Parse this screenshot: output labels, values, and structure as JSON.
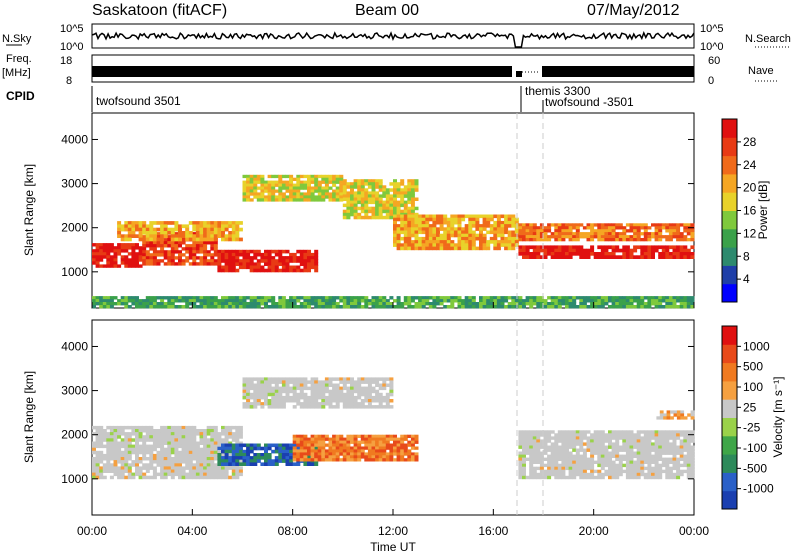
{
  "header": {
    "title": "Saskatoon (fitACF)",
    "beam": "Beam 00",
    "date": "07/May/2012"
  },
  "top_panels": {
    "nsky_label": "N.Sky",
    "nsky_ticks": [
      "10^5",
      "10^0"
    ],
    "nsearch_label": "N.Search",
    "nsearch_ticks": [
      "10^5",
      "10^0"
    ],
    "freq_label": "Freq.",
    "freq_unit": "[MHz]",
    "freq_ticks": [
      "18",
      "8"
    ],
    "nave_label": "Nave",
    "nave_ticks": [
      "60",
      "0"
    ],
    "cpid_label": "CPID",
    "cpid_entries": [
      "twofsound 3501",
      "themis 3300",
      "twofsound -3501"
    ]
  },
  "colors": {
    "power_scale": [
      "#0000ff",
      "#1f3fa8",
      "#2d8a6e",
      "#3aa14a",
      "#7fc93c",
      "#e8d22a",
      "#f5a623",
      "#f06a1a",
      "#e83a14",
      "#e01010"
    ],
    "velocity_scale": [
      "#1a3fb0",
      "#2a60c8",
      "#2d8a5a",
      "#3fa648",
      "#9ad24a",
      "#c8c8c8",
      "#f5a040",
      "#f07a20",
      "#e84a1a",
      "#e01010"
    ],
    "ground_scatter": "#c0c0c0"
  },
  "chart_data": [
    {
      "type": "heatmap",
      "panel": "power",
      "ylabel": "Slant Range [km]",
      "ylim": [
        180,
        4600
      ],
      "yticks": [
        "4000",
        "3000",
        "2000",
        "1000"
      ],
      "xlim": [
        "00:00",
        "24:00"
      ],
      "colorbar_label": "Power [dB]",
      "colorbar_ticks": [
        "28",
        "24",
        "20",
        "16",
        "12",
        "8",
        "4"
      ],
      "bands": [
        {
          "t": [
            0,
            2
          ],
          "range": [
            1100,
            1650
          ],
          "level": 9
        },
        {
          "t": [
            2,
            5
          ],
          "range": [
            1150,
            1900
          ],
          "level": 8
        },
        {
          "t": [
            5,
            9
          ],
          "range": [
            1000,
            1500
          ],
          "level": 9
        },
        {
          "t": [
            1,
            6
          ],
          "range": [
            1700,
            2150
          ],
          "level": 6
        },
        {
          "t": [
            6,
            10
          ],
          "range": [
            2600,
            3200
          ],
          "level": 5
        },
        {
          "t": [
            10,
            13
          ],
          "range": [
            2200,
            3100
          ],
          "level": 5
        },
        {
          "t": [
            12,
            17
          ],
          "range": [
            1500,
            2300
          ],
          "level": 6
        },
        {
          "t": [
            17,
            24
          ],
          "range": [
            1300,
            1600
          ],
          "level": 9
        },
        {
          "t": [
            17,
            24
          ],
          "range": [
            1700,
            2100
          ],
          "level": 7
        },
        {
          "t": [
            0,
            24
          ],
          "range": [
            180,
            450
          ],
          "level": 3
        }
      ]
    },
    {
      "type": "heatmap",
      "panel": "velocity",
      "ylabel": "Slant Range [km]",
      "ylim": [
        180,
        4600
      ],
      "yticks": [
        "4000",
        "3000",
        "2000",
        "1000"
      ],
      "xlabel": "Time UT",
      "xticks": [
        "00:00",
        "04:00",
        "08:00",
        "12:00",
        "16:00",
        "20:00",
        "00:00"
      ],
      "colorbar_label": "Velocity [m s⁻¹]",
      "colorbar_ticks": [
        "1000",
        "500",
        "100",
        "25",
        "-25",
        "-100",
        "-500",
        "-1000"
      ],
      "bands": [
        {
          "t": [
            0,
            6
          ],
          "range": [
            1000,
            2200
          ],
          "level": 5
        },
        {
          "t": [
            5,
            9
          ],
          "range": [
            1300,
            1800
          ],
          "level": 1
        },
        {
          "t": [
            8,
            13
          ],
          "range": [
            1400,
            2000
          ],
          "level": 7
        },
        {
          "t": [
            6,
            12
          ],
          "range": [
            2600,
            3300
          ],
          "level": 5
        },
        {
          "t": [
            17,
            24
          ],
          "range": [
            1000,
            2100
          ],
          "level": 5
        },
        {
          "t": [
            22.5,
            24
          ],
          "range": [
            2350,
            2550
          ],
          "level": 6
        }
      ]
    }
  ]
}
